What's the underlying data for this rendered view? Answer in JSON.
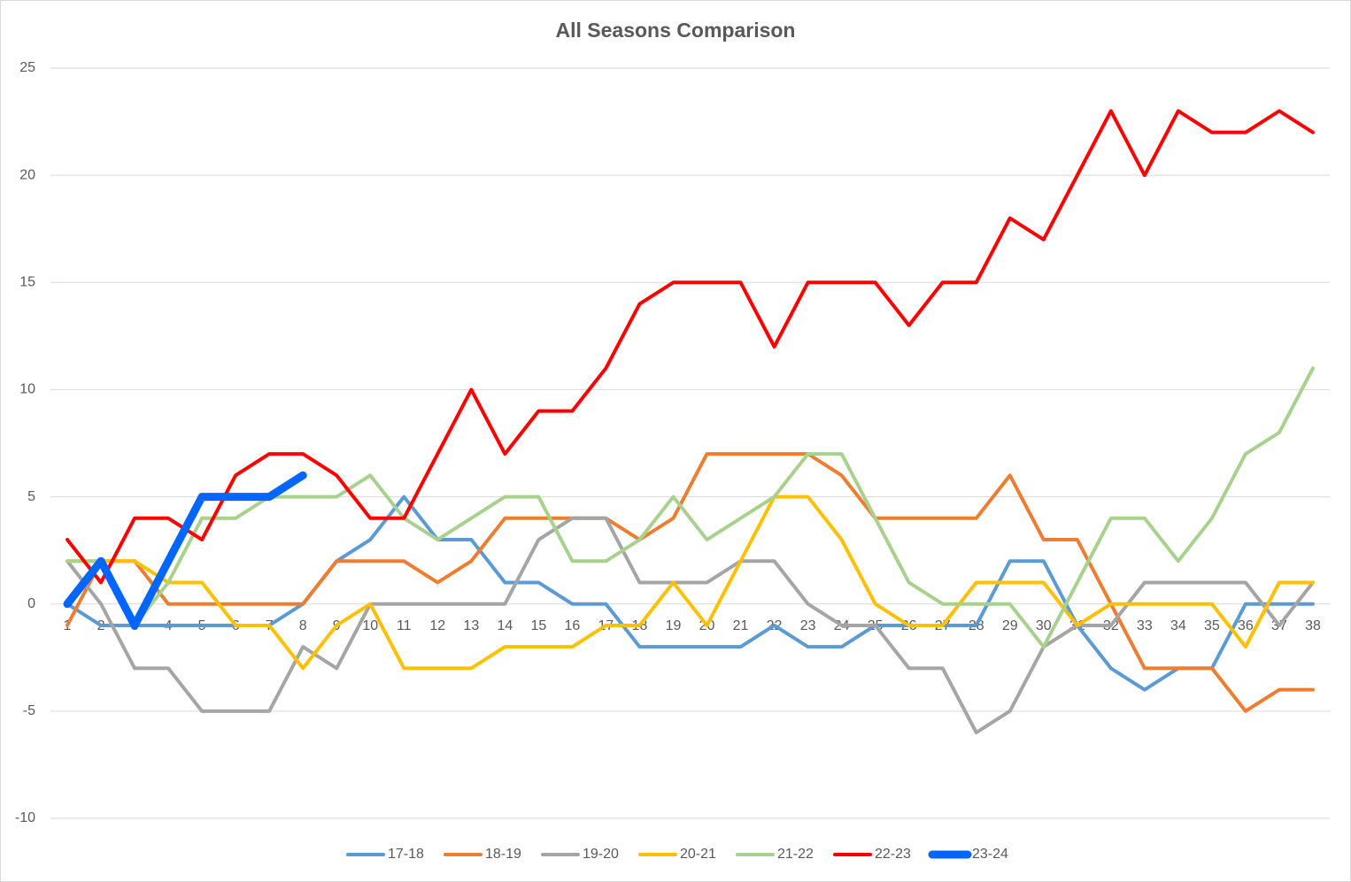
{
  "chart_data": {
    "type": "line",
    "title": "All Seasons Comparison",
    "categories": [
      1,
      2,
      3,
      4,
      5,
      6,
      7,
      8,
      9,
      10,
      11,
      12,
      13,
      14,
      15,
      16,
      17,
      18,
      19,
      20,
      21,
      22,
      23,
      24,
      25,
      26,
      27,
      28,
      29,
      30,
      31,
      32,
      33,
      34,
      35,
      36,
      37,
      38
    ],
    "ylim": [
      -10,
      25
    ],
    "yticks": [
      -10,
      -5,
      0,
      5,
      10,
      15,
      20,
      25
    ],
    "grid": true,
    "legend": "bottom",
    "series": [
      {
        "name": "17-18",
        "color": "#5b9bd5",
        "width": 4,
        "values": [
          0,
          -1,
          -1,
          -1,
          -1,
          -1,
          -1,
          0,
          2,
          3,
          5,
          3,
          3,
          1,
          1,
          0,
          0,
          -2,
          -2,
          -2,
          -2,
          -1,
          -2,
          -2,
          -1,
          -1,
          -1,
          -1,
          2,
          2,
          -1,
          -3,
          -4,
          -3,
          -3,
          0,
          0,
          0
        ]
      },
      {
        "name": "18-19",
        "color": "#ed7d31",
        "width": 4,
        "values": [
          -1,
          2,
          2,
          0,
          0,
          0,
          0,
          0,
          2,
          2,
          2,
          1,
          2,
          4,
          4,
          4,
          4,
          3,
          4,
          7,
          7,
          7,
          7,
          6,
          4,
          4,
          4,
          4,
          6,
          3,
          3,
          0,
          -3,
          -3,
          -3,
          -5,
          -4,
          -4
        ]
      },
      {
        "name": "19-20",
        "color": "#a5a5a5",
        "width": 4,
        "values": [
          2,
          0,
          -3,
          -3,
          -5,
          -5,
          -5,
          -2,
          -3,
          0,
          0,
          0,
          0,
          0,
          3,
          4,
          4,
          1,
          1,
          1,
          2,
          2,
          0,
          -1,
          -1,
          -3,
          -3,
          -6,
          -5,
          -2,
          -1,
          -1,
          1,
          1,
          1,
          1,
          -1,
          1
        ]
      },
      {
        "name": "20-21",
        "color": "#ffc000",
        "width": 4,
        "values": [
          2,
          2,
          2,
          1,
          1,
          -1,
          -1,
          -3,
          -1,
          0,
          -3,
          -3,
          -3,
          -2,
          -2,
          -2,
          -1,
          -1,
          1,
          -1,
          2,
          5,
          5,
          3,
          0,
          -1,
          -1,
          1,
          1,
          1,
          -1,
          0,
          0,
          0,
          0,
          -2,
          1,
          1
        ]
      },
      {
        "name": "21-22",
        "color": "#a9d18e",
        "width": 4,
        "values": [
          2,
          2,
          -1,
          1,
          4,
          4,
          5,
          5,
          5,
          6,
          4,
          3,
          4,
          5,
          5,
          2,
          2,
          3,
          5,
          3,
          4,
          5,
          7,
          7,
          4,
          1,
          0,
          0,
          0,
          -2,
          1,
          4,
          4,
          2,
          4,
          7,
          8,
          11
        ]
      },
      {
        "name": "22-23",
        "color": "#ff0000",
        "width": 4,
        "values": [
          3,
          1,
          4,
          4,
          3,
          6,
          7,
          7,
          6,
          4,
          4,
          7,
          10,
          7,
          9,
          9,
          11,
          14,
          15,
          15,
          15,
          12,
          15,
          15,
          15,
          13,
          15,
          15,
          18,
          17,
          20,
          23,
          20,
          23,
          22,
          22,
          23,
          22
        ]
      },
      {
        "name": "23-24",
        "color": "#0066ff",
        "width": 9,
        "values": [
          0,
          2,
          -1,
          2,
          5,
          5,
          5,
          6,
          null,
          null,
          null,
          null,
          null,
          null,
          null,
          null,
          null,
          null,
          null,
          null,
          null,
          null,
          null,
          null,
          null,
          null,
          null,
          null,
          null,
          null,
          null,
          null,
          null,
          null,
          null,
          null,
          null,
          null
        ]
      }
    ]
  }
}
